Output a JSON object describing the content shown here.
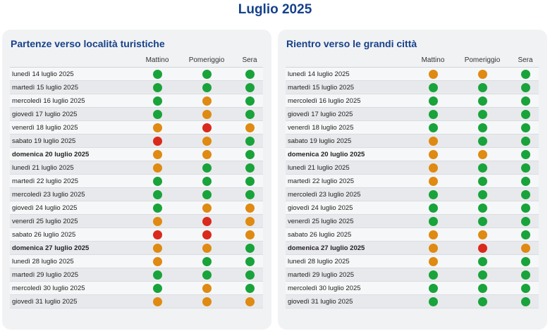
{
  "title": "Luglio 2025",
  "legend_colors": {
    "green": "#19a33b",
    "orange": "#df8a12",
    "red": "#d92a1b"
  },
  "columns": [
    "Mattino",
    "Pomeriggio",
    "Sera"
  ],
  "panels": [
    {
      "title": "Partenze verso località turistiche",
      "rows": [
        {
          "date": "lunedì 14 luglio 2025",
          "bold": false,
          "levels": [
            "green",
            "green",
            "green"
          ]
        },
        {
          "date": "martedì 15 luglio 2025",
          "bold": false,
          "levels": [
            "green",
            "green",
            "green"
          ]
        },
        {
          "date": "mercoledì 16 luglio 2025",
          "bold": false,
          "levels": [
            "green",
            "orange",
            "green"
          ]
        },
        {
          "date": "giovedì 17 luglio 2025",
          "bold": false,
          "levels": [
            "green",
            "orange",
            "green"
          ]
        },
        {
          "date": "venerdì 18 luglio 2025",
          "bold": false,
          "levels": [
            "orange",
            "red",
            "orange"
          ]
        },
        {
          "date": "sabato 19 luglio 2025",
          "bold": false,
          "levels": [
            "red",
            "orange",
            "green"
          ]
        },
        {
          "date": "domenica 20 luglio 2025",
          "bold": true,
          "levels": [
            "orange",
            "orange",
            "green"
          ]
        },
        {
          "date": "lunedì 21 luglio 2025",
          "bold": false,
          "levels": [
            "orange",
            "green",
            "green"
          ]
        },
        {
          "date": "martedì 22 luglio 2025",
          "bold": false,
          "levels": [
            "green",
            "green",
            "green"
          ]
        },
        {
          "date": "mercoledì 23 luglio 2025",
          "bold": false,
          "levels": [
            "green",
            "green",
            "green"
          ]
        },
        {
          "date": "giovedì 24 luglio 2025",
          "bold": false,
          "levels": [
            "green",
            "orange",
            "orange"
          ]
        },
        {
          "date": "venerdì 25 luglio 2025",
          "bold": false,
          "levels": [
            "orange",
            "red",
            "orange"
          ]
        },
        {
          "date": "sabato 26 luglio 2025",
          "bold": false,
          "levels": [
            "red",
            "red",
            "orange"
          ]
        },
        {
          "date": "domenica 27 luglio 2025",
          "bold": true,
          "levels": [
            "orange",
            "orange",
            "green"
          ]
        },
        {
          "date": "lunedì 28 luglio 2025",
          "bold": false,
          "levels": [
            "orange",
            "green",
            "green"
          ]
        },
        {
          "date": "martedì 29 luglio 2025",
          "bold": false,
          "levels": [
            "green",
            "green",
            "green"
          ]
        },
        {
          "date": "mercoledì 30 luglio 2025",
          "bold": false,
          "levels": [
            "green",
            "orange",
            "green"
          ]
        },
        {
          "date": "giovedì 31 luglio 2025",
          "bold": false,
          "levels": [
            "orange",
            "orange",
            "orange"
          ]
        }
      ]
    },
    {
      "title": "Rientro verso le grandi città",
      "rows": [
        {
          "date": "lunedì 14 luglio 2025",
          "bold": false,
          "levels": [
            "orange",
            "orange",
            "green"
          ]
        },
        {
          "date": "martedì 15 luglio 2025",
          "bold": false,
          "levels": [
            "green",
            "green",
            "green"
          ]
        },
        {
          "date": "mercoledì 16 luglio 2025",
          "bold": false,
          "levels": [
            "green",
            "green",
            "green"
          ]
        },
        {
          "date": "giovedì 17 luglio 2025",
          "bold": false,
          "levels": [
            "green",
            "green",
            "green"
          ]
        },
        {
          "date": "venerdì 18 luglio 2025",
          "bold": false,
          "levels": [
            "green",
            "green",
            "green"
          ]
        },
        {
          "date": "sabato 19 luglio 2025",
          "bold": false,
          "levels": [
            "orange",
            "green",
            "green"
          ]
        },
        {
          "date": "domenica 20 luglio 2025",
          "bold": true,
          "levels": [
            "orange",
            "orange",
            "green"
          ]
        },
        {
          "date": "lunedì 21 luglio 2025",
          "bold": false,
          "levels": [
            "orange",
            "green",
            "green"
          ]
        },
        {
          "date": "martedì 22 luglio 2025",
          "bold": false,
          "levels": [
            "orange",
            "green",
            "green"
          ]
        },
        {
          "date": "mercoledì 23 luglio 2025",
          "bold": false,
          "levels": [
            "green",
            "green",
            "green"
          ]
        },
        {
          "date": "giovedì 24 luglio 2025",
          "bold": false,
          "levels": [
            "green",
            "green",
            "green"
          ]
        },
        {
          "date": "venerdì 25 luglio 2025",
          "bold": false,
          "levels": [
            "green",
            "green",
            "green"
          ]
        },
        {
          "date": "sabato 26 luglio 2025",
          "bold": false,
          "levels": [
            "orange",
            "orange",
            "green"
          ]
        },
        {
          "date": "domenica 27 luglio 2025",
          "bold": true,
          "levels": [
            "orange",
            "red",
            "orange"
          ]
        },
        {
          "date": "lunedì 28 luglio 2025",
          "bold": false,
          "levels": [
            "orange",
            "green",
            "green"
          ]
        },
        {
          "date": "martedì 29 luglio 2025",
          "bold": false,
          "levels": [
            "green",
            "green",
            "green"
          ]
        },
        {
          "date": "mercoledì 30 luglio 2025",
          "bold": false,
          "levels": [
            "green",
            "green",
            "green"
          ]
        },
        {
          "date": "giovedì 31 luglio 2025",
          "bold": false,
          "levels": [
            "green",
            "green",
            "green"
          ]
        }
      ]
    }
  ]
}
